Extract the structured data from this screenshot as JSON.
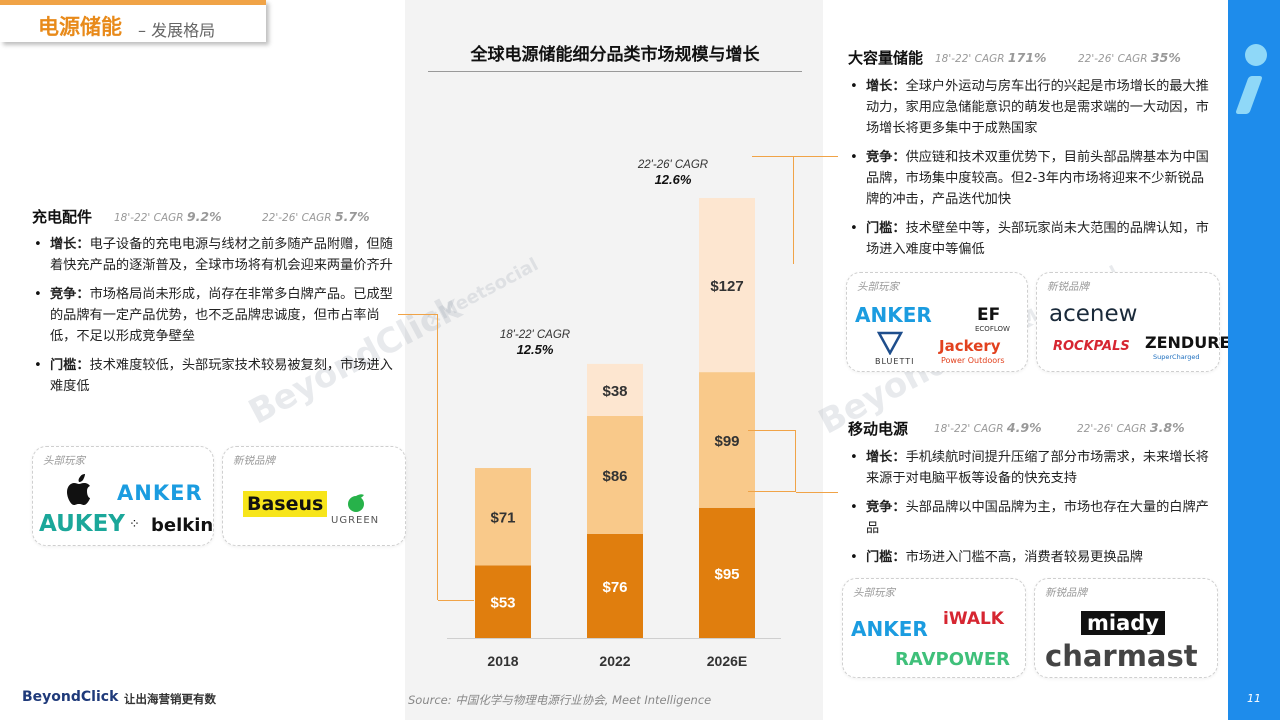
{
  "header": {
    "title": "电源储能",
    "subtitle": "– 发展格局"
  },
  "chart_data": {
    "type": "bar",
    "title": "全球电源储能细分品类市场规模与增长",
    "categories": [
      "2018",
      "2022",
      "2026E"
    ],
    "series": [
      {
        "name": "",
        "values": [
          53,
          76,
          95
        ],
        "labels": [
          "$53",
          "$76",
          "$95"
        ],
        "color": "#E07E0E"
      },
      {
        "name": "",
        "values": [
          71,
          86,
          99
        ],
        "labels": [
          "$71",
          "$86",
          "$99"
        ],
        "color": "#F9C98A"
      },
      {
        "name": "",
        "values": [
          0,
          38,
          127
        ],
        "labels": [
          "",
          "$38",
          "$127"
        ],
        "color": "#FDE6D0"
      }
    ],
    "annotations": [
      {
        "label": "18'-22' CAGR",
        "value": "12.5%"
      },
      {
        "label": "22'-26' CAGR",
        "value": "12.6%"
      }
    ],
    "ylim": [
      0,
      340
    ],
    "grid": false,
    "legend": "none"
  },
  "left": {
    "title": "充电配件",
    "cagr1_label": "18'-22' CAGR",
    "cagr1_value": "9.2%",
    "cagr2_label": "22'-26' CAGR",
    "cagr2_value": "5.7%",
    "bullets": [
      {
        "key": "增长：",
        "text": "电子设备的充电电源与线材之前多随产品附赠，但随着快充产品的逐渐普及，全球市场将有机会迎来两量价齐升"
      },
      {
        "key": "竞争：",
        "text": "市场格局尚未形成，尚存在非常多白牌产品。已成型的品牌有一定产品优势，也不乏品牌忠诚度，但市占率尚低，不足以形成竞争壁垒"
      },
      {
        "key": "门槛：",
        "text": "技术难度较低，头部玩家技术较易被复刻，市场进入难度低"
      }
    ],
    "box1": {
      "caption": "头部玩家",
      "logos": [
        "",
        "ANKER",
        "AUKEY",
        "belkin"
      ]
    },
    "box2": {
      "caption": "新锐品牌",
      "logos": [
        "Baseus",
        "UGREEN"
      ]
    }
  },
  "right_top": {
    "title": "大容量储能",
    "cagr1_label": "18'-22' CAGR",
    "cagr1_value": "171%",
    "cagr2_label": "22'-26' CAGR",
    "cagr2_value": "35%",
    "bullets": [
      {
        "key": "增长：",
        "text": "全球户外运动与房车出行的兴起是市场增长的最大推动力，家用应急储能意识的萌发也是需求端的一大动因，市场增长将更多集中于成熟国家"
      },
      {
        "key": "竞争：",
        "text": "供应链和技术双重优势下，目前头部品牌基本为中国品牌，市场集中度较高。但2-3年内市场将迎来不少新锐品牌的冲击，产品迭代加快"
      },
      {
        "key": "门槛：",
        "text": "技术壁垒中等，头部玩家尚未大范围的品牌认知，市场进入难度中等偏低"
      }
    ],
    "box1": {
      "caption": "头部玩家",
      "logos": [
        "ANKER",
        "EF",
        "ECOFLOW",
        "BLUETTI",
        "Jackery",
        "Power Outdoors"
      ]
    },
    "box2": {
      "caption": "新锐品牌",
      "logos": [
        "acenew",
        "ROCKPALS",
        "ZENDURE",
        "SuperCharged"
      ]
    }
  },
  "right_bottom": {
    "title": "移动电源",
    "cagr1_label": "18'-22' CAGR",
    "cagr1_value": "4.9%",
    "cagr2_label": "22'-26' CAGR",
    "cagr2_value": "3.8%",
    "bullets": [
      {
        "key": "增长：",
        "text": "手机续航时间提升压缩了部分市场需求，未来增长将来源于对电脑平板等设备的快充支持"
      },
      {
        "key": "竞争：",
        "text": "头部品牌以中国品牌为主，市场也存在大量的白牌产品"
      },
      {
        "key": "门槛：",
        "text": "市场进入门槛不高，消费者较易更换品牌"
      }
    ],
    "box1": {
      "caption": "头部玩家",
      "logos": [
        "ANKER",
        "iWALK",
        "RAVPOWER"
      ]
    },
    "box2": {
      "caption": "新锐品牌",
      "logos": [
        "miady",
        "charmast"
      ]
    }
  },
  "watermark": {
    "main": "BeyondClick",
    "sub": "×Meetsocial"
  },
  "footer": {
    "source": "Source: 中国化学与物理电源行业协会, Meet Intelligence",
    "brand": "BeyondClick",
    "slogan": "让出海营销更有数",
    "page": "11"
  },
  "colors": {
    "accent": "#E88A1A",
    "bar_dark": "#E07E0E",
    "bar_mid": "#F9C98A",
    "bar_light": "#FDE6D0",
    "strip": "#1E8CEB"
  }
}
